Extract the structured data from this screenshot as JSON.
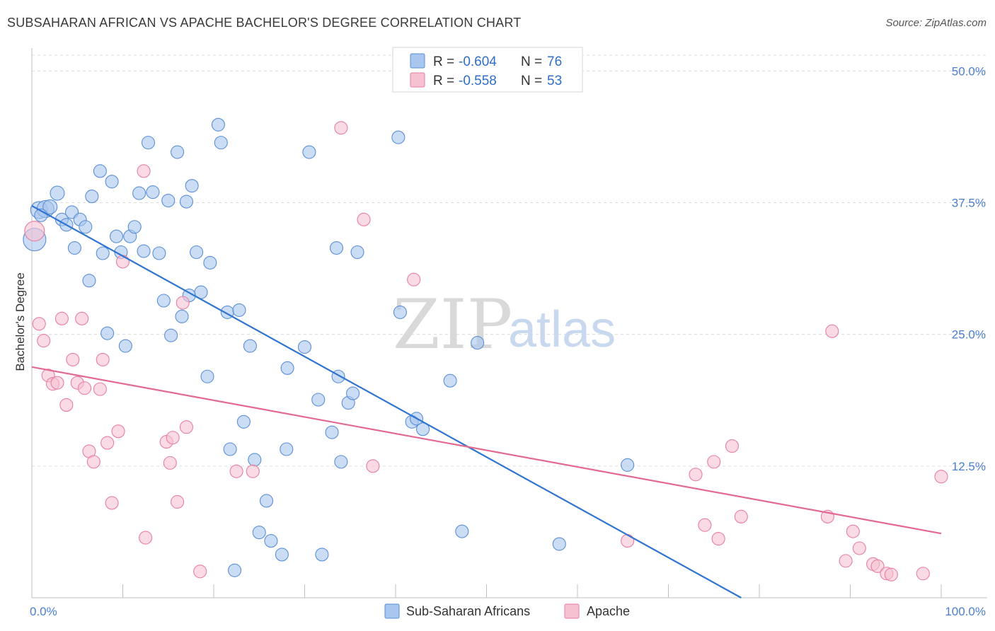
{
  "header": {
    "title": "SUBSAHARAN AFRICAN VS APACHE BACHELOR'S DEGREE CORRELATION CHART",
    "source": "Source: ZipAtlas.com"
  },
  "watermark": {
    "zip": "ZIP",
    "atlas": "atlas"
  },
  "legend": {
    "rows": [
      {
        "r_label": "R =",
        "r_value": "-0.604",
        "n_label": "N =",
        "n_value": "76",
        "color": "#a9c6ee",
        "stroke": "#5b8fd6"
      },
      {
        "r_label": "R =",
        "r_value": "-0.558",
        "n_label": "N =",
        "n_value": "53",
        "color": "#f6c2d2",
        "stroke": "#e77fa0"
      }
    ]
  },
  "chart_data": {
    "type": "scatter",
    "title": "SUBSAHARAN AFRICAN VS APACHE BACHELOR'S DEGREE CORRELATION CHART",
    "xlabel": "",
    "ylabel": "Bachelor's Degree",
    "xlim": [
      0,
      100
    ],
    "ylim": [
      0,
      51.5
    ],
    "x_ticks": [
      "0.0%",
      "100.0%"
    ],
    "y_ticks": [
      {
        "value": 12.5,
        "label": "12.5%"
      },
      {
        "value": 25.0,
        "label": "25.0%"
      },
      {
        "value": 37.5,
        "label": "37.5%"
      },
      {
        "value": 50.0,
        "label": "50.0%"
      }
    ],
    "grid": true,
    "legend_position": "bottom-center",
    "series": [
      {
        "name": "Sub-Saharan Africans",
        "color": "#a9c6ee",
        "stroke": "#5b8fd6",
        "line_color": "#2f74d0",
        "trend": {
          "x": [
            0,
            78
          ],
          "y": [
            37.2,
            0
          ]
        },
        "points": [
          [
            0.3,
            34.0,
            16
          ],
          [
            0.8,
            36.8,
            12
          ],
          [
            1.5,
            36.9,
            12
          ],
          [
            2.0,
            37.1,
            10
          ],
          [
            2.8,
            38.4,
            10
          ],
          [
            3.3,
            35.9,
            9
          ],
          [
            3.8,
            35.4,
            9
          ],
          [
            4.4,
            36.6,
            9
          ],
          [
            4.7,
            33.2,
            9
          ],
          [
            5.3,
            35.9,
            9
          ],
          [
            5.9,
            35.2,
            9
          ],
          [
            6.3,
            30.1,
            9
          ],
          [
            6.6,
            38.1,
            9
          ],
          [
            7.5,
            40.5,
            9
          ],
          [
            7.8,
            32.7,
            9
          ],
          [
            8.3,
            25.1,
            9
          ],
          [
            8.8,
            39.5,
            9
          ],
          [
            9.3,
            34.3,
            9
          ],
          [
            9.8,
            32.8,
            9
          ],
          [
            10.3,
            23.9,
            9
          ],
          [
            10.8,
            34.3,
            9
          ],
          [
            11.3,
            35.2,
            9
          ],
          [
            11.8,
            38.4,
            9
          ],
          [
            12.3,
            32.9,
            9
          ],
          [
            12.8,
            43.2,
            9
          ],
          [
            13.3,
            38.5,
            9
          ],
          [
            14.0,
            32.7,
            9
          ],
          [
            14.5,
            28.2,
            9
          ],
          [
            15.0,
            37.7,
            9
          ],
          [
            15.3,
            24.9,
            9
          ],
          [
            16.0,
            42.3,
            9
          ],
          [
            16.5,
            26.7,
            9
          ],
          [
            17.0,
            37.6,
            9
          ],
          [
            17.3,
            28.7,
            9
          ],
          [
            17.6,
            39.1,
            9
          ],
          [
            18.1,
            32.8,
            9
          ],
          [
            18.6,
            29.0,
            9
          ],
          [
            19.3,
            21.0,
            9
          ],
          [
            19.6,
            31.8,
            9
          ],
          [
            20.5,
            44.9,
            9
          ],
          [
            20.8,
            43.2,
            9
          ],
          [
            21.5,
            27.1,
            9
          ],
          [
            21.8,
            14.1,
            9
          ],
          [
            22.3,
            2.6,
            9
          ],
          [
            22.8,
            27.3,
            9
          ],
          [
            23.3,
            16.7,
            9
          ],
          [
            24.0,
            23.9,
            9
          ],
          [
            24.5,
            13.1,
            9
          ],
          [
            25.0,
            6.2,
            9
          ],
          [
            25.8,
            9.2,
            9
          ],
          [
            26.3,
            5.4,
            9
          ],
          [
            27.5,
            4.1,
            9
          ],
          [
            28.0,
            14.1,
            9
          ],
          [
            28.1,
            21.8,
            9
          ],
          [
            30.0,
            23.8,
            9
          ],
          [
            30.5,
            42.3,
            9
          ],
          [
            31.5,
            18.8,
            9
          ],
          [
            31.9,
            4.1,
            9
          ],
          [
            33.0,
            15.7,
            9
          ],
          [
            33.5,
            33.2,
            9
          ],
          [
            33.7,
            21.0,
            9
          ],
          [
            34.0,
            12.9,
            9
          ],
          [
            34.8,
            18.5,
            9
          ],
          [
            35.3,
            19.4,
            9
          ],
          [
            35.8,
            32.8,
            9
          ],
          [
            40.3,
            43.7,
            9
          ],
          [
            40.5,
            27.1,
            9
          ],
          [
            41.8,
            16.7,
            9
          ],
          [
            42.3,
            17.0,
            9
          ],
          [
            43.0,
            16.0,
            9
          ],
          [
            46.0,
            20.6,
            9
          ],
          [
            47.3,
            6.3,
            9
          ],
          [
            49.0,
            24.2,
            9
          ],
          [
            58.0,
            5.1,
            9
          ],
          [
            65.5,
            12.6,
            9
          ],
          [
            1.0,
            36.3,
            9
          ]
        ]
      },
      {
        "name": "Apache",
        "color": "#f6c2d2",
        "stroke": "#e77fa0",
        "line_color": "#e2698f",
        "trend": {
          "x": [
            0,
            100
          ],
          "y": [
            21.9,
            6.1
          ]
        },
        "points": [
          [
            0.3,
            34.8,
            14
          ],
          [
            0.8,
            26.0,
            9
          ],
          [
            1.3,
            24.4,
            9
          ],
          [
            1.8,
            21.1,
            9
          ],
          [
            2.3,
            20.3,
            9
          ],
          [
            2.8,
            20.4,
            9
          ],
          [
            3.3,
            26.5,
            9
          ],
          [
            3.8,
            18.3,
            9
          ],
          [
            4.5,
            22.6,
            9
          ],
          [
            5.0,
            20.4,
            9
          ],
          [
            5.5,
            26.5,
            9
          ],
          [
            5.8,
            19.9,
            9
          ],
          [
            6.3,
            13.9,
            9
          ],
          [
            6.8,
            12.9,
            9
          ],
          [
            7.5,
            19.8,
            9
          ],
          [
            7.8,
            22.6,
            9
          ],
          [
            8.3,
            14.7,
            9
          ],
          [
            8.8,
            9.0,
            9
          ],
          [
            9.5,
            15.8,
            9
          ],
          [
            10.0,
            31.9,
            9
          ],
          [
            12.3,
            40.5,
            9
          ],
          [
            12.5,
            5.7,
            9
          ],
          [
            14.8,
            14.8,
            9
          ],
          [
            15.2,
            12.8,
            9
          ],
          [
            15.5,
            15.2,
            9
          ],
          [
            16.0,
            9.1,
            9
          ],
          [
            16.6,
            28.0,
            9
          ],
          [
            17.0,
            16.2,
            9
          ],
          [
            18.5,
            2.5,
            9
          ],
          [
            22.5,
            12.0,
            9
          ],
          [
            24.3,
            12.0,
            9
          ],
          [
            34.0,
            44.6,
            9
          ],
          [
            36.5,
            35.9,
            9
          ],
          [
            37.5,
            12.5,
            9
          ],
          [
            42.0,
            30.2,
            9
          ],
          [
            65.5,
            5.4,
            9
          ],
          [
            73.0,
            11.7,
            9
          ],
          [
            74.0,
            6.9,
            9
          ],
          [
            75.0,
            12.9,
            9
          ],
          [
            75.5,
            5.6,
            9
          ],
          [
            77.0,
            14.4,
            9
          ],
          [
            78.0,
            7.7,
            9
          ],
          [
            87.5,
            7.7,
            9
          ],
          [
            88.0,
            25.3,
            9
          ],
          [
            89.5,
            3.5,
            9
          ],
          [
            90.3,
            6.3,
            9
          ],
          [
            91.0,
            4.7,
            9
          ],
          [
            92.5,
            3.2,
            9
          ],
          [
            93.0,
            3.0,
            9
          ],
          [
            94.0,
            2.3,
            9
          ],
          [
            94.5,
            2.2,
            9
          ],
          [
            98.0,
            2.3,
            9
          ],
          [
            100.0,
            11.5,
            9
          ]
        ]
      }
    ]
  }
}
